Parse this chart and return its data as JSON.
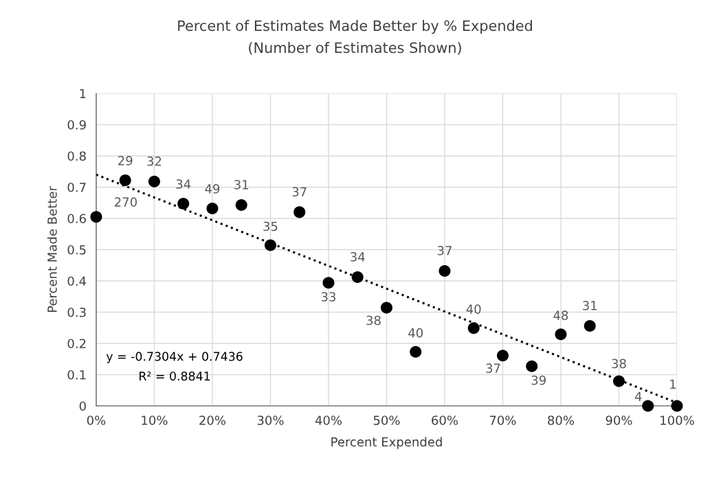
{
  "chart_data": {
    "type": "scatter",
    "title": "Percent of Estimates Made Better by % Expended",
    "subtitle": "(Number of Estimates Shown)",
    "xlabel": "Percent Expended",
    "ylabel": "Percent Made Better",
    "xlim": [
      0,
      100
    ],
    "ylim": [
      0,
      1
    ],
    "xticks": [
      {
        "value": 0,
        "label": "0%"
      },
      {
        "value": 10,
        "label": "10%"
      },
      {
        "value": 20,
        "label": "20%"
      },
      {
        "value": 30,
        "label": "30%"
      },
      {
        "value": 40,
        "label": "40%"
      },
      {
        "value": 50,
        "label": "50%"
      },
      {
        "value": 60,
        "label": "60%"
      },
      {
        "value": 70,
        "label": "70%"
      },
      {
        "value": 80,
        "label": "80%"
      },
      {
        "value": 90,
        "label": "90%"
      },
      {
        "value": 100,
        "label": "100%"
      }
    ],
    "yticks": [
      0,
      0.1,
      0.2,
      0.3,
      0.4,
      0.5,
      0.6,
      0.7,
      0.8,
      0.9,
      1
    ],
    "grid": true,
    "legend": false,
    "series": [
      {
        "color": "#000000",
        "marker": "circle",
        "x": [
          0,
          5,
          10,
          15,
          20,
          25,
          30,
          35,
          40,
          45,
          50,
          55,
          60,
          65,
          70,
          75,
          80,
          85,
          90,
          95,
          100
        ],
        "values": [
          0.605,
          0.722,
          0.718,
          0.647,
          0.632,
          0.643,
          0.514,
          0.62,
          0.394,
          0.412,
          0.314,
          0.173,
          0.432,
          0.249,
          0.161,
          0.127,
          0.229,
          0.256,
          0.079,
          0,
          0
        ]
      },
      {
        "type": "line",
        "color": "#000000",
        "marker": "none",
        "line_style": "dotted",
        "x": [
          0,
          100
        ],
        "values": [
          0.74,
          0.01
        ]
      }
    ],
    "annotations": [
      {
        "text": "270",
        "x": 0,
        "y": 0.605
      },
      {
        "text": "29",
        "x": 5,
        "y": 0.722
      },
      {
        "text": "32",
        "x": 10,
        "y": 0.718
      },
      {
        "text": "34",
        "x": 15,
        "y": 0.647
      },
      {
        "text": "49",
        "x": 20,
        "y": 0.632
      },
      {
        "text": "31",
        "x": 25,
        "y": 0.643
      },
      {
        "text": "35",
        "x": 30,
        "y": 0.514
      },
      {
        "text": "37",
        "x": 35,
        "y": 0.62
      },
      {
        "text": "33",
        "x": 40,
        "y": 0.394
      },
      {
        "text": "34",
        "x": 45,
        "y": 0.412
      },
      {
        "text": "38",
        "x": 50,
        "y": 0.314
      },
      {
        "text": "40",
        "x": 55,
        "y": 0.173
      },
      {
        "text": "37",
        "x": 60,
        "y": 0.432
      },
      {
        "text": "40",
        "x": 65,
        "y": 0.249
      },
      {
        "text": "37",
        "x": 70,
        "y": 0.161
      },
      {
        "text": "39",
        "x": 75,
        "y": 0.127
      },
      {
        "text": "48",
        "x": 80,
        "y": 0.229
      },
      {
        "text": "31",
        "x": 85,
        "y": 0.256
      },
      {
        "text": "38",
        "x": 90,
        "y": 0.079
      },
      {
        "text": "4",
        "x": 95,
        "y": 0
      },
      {
        "text": "1",
        "x": 100,
        "y": 0
      },
      "y = -0.7304x + 0.7436",
      "R² = 0.8841"
    ]
  }
}
